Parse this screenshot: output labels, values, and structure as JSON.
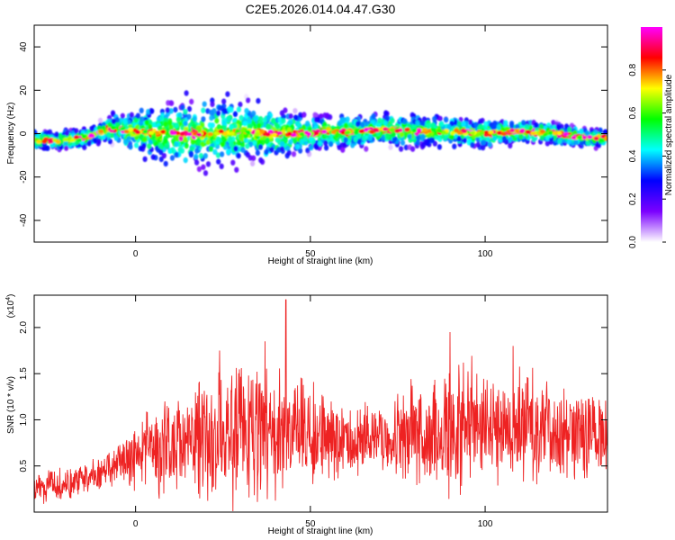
{
  "title": "C2E5.2026.014.04.47.G30",
  "chart_data": [
    {
      "type": "heatmap",
      "xlabel": "Height of straight line (km)",
      "ylabel": "Frequency (Hz)",
      "xlim": [
        -29,
        135
      ],
      "ylim": [
        -50,
        50
      ],
      "xticks": [
        0,
        50,
        100
      ],
      "yticks": [
        -40,
        -20,
        0,
        20,
        40
      ],
      "colorbar": {
        "label": "Normalized spectral amplitude",
        "range": [
          0,
          1
        ],
        "ticks": [
          "0.0",
          "0.2",
          "0.4",
          "0.6",
          "0.8"
        ],
        "colors": [
          "#ffffff",
          "#7b00ff",
          "#0000ff",
          "#00ffff",
          "#00ff00",
          "#ffff00",
          "#ff0000",
          "#ff00ff"
        ]
      },
      "ridge": {
        "x": [
          -29,
          -20,
          -15,
          -11,
          -8,
          -5,
          0,
          10,
          20,
          30,
          40,
          50,
          55,
          60,
          65,
          70,
          80,
          90,
          100,
          110,
          120,
          125,
          130,
          135
        ],
        "y": [
          -3,
          -3,
          -2,
          0,
          2,
          2,
          1,
          0,
          0,
          1,
          0,
          0,
          1,
          1,
          1,
          2,
          1,
          1,
          0,
          1,
          0,
          -1,
          -2,
          -2
        ]
      },
      "spread_hz": {
        "x": [
          -29,
          -10,
          0,
          10,
          20,
          30,
          40,
          50,
          60,
          80,
          100,
          120,
          135
        ],
        "y": [
          3,
          4,
          8,
          12,
          14,
          12,
          10,
          7,
          6,
          6,
          5,
          4,
          3
        ]
      },
      "grid": false
    },
    {
      "type": "line",
      "xlabel": "Height of straight line (km)",
      "ylabel": "SNR (10 * v/v)",
      "multiplier": "(x10",
      "multiplier_exp": "4",
      "xlim": [
        -29,
        135
      ],
      "ylim": [
        0,
        2.35
      ],
      "xticks": [
        0,
        50,
        100
      ],
      "yticks": [
        "0.5",
        "1.0",
        "1.5",
        "2.0"
      ],
      "color": "#ee2222",
      "envelope": {
        "x": [
          -29,
          -20,
          -10,
          -5,
          0,
          10,
          20,
          30,
          40,
          45,
          50,
          60,
          70,
          80,
          90,
          100,
          110,
          120,
          130,
          135
        ],
        "y": [
          0.25,
          0.3,
          0.4,
          0.5,
          0.6,
          0.75,
          0.8,
          0.85,
          0.85,
          0.85,
          0.8,
          0.8,
          0.8,
          0.85,
          0.9,
          0.95,
          0.95,
          0.9,
          0.85,
          0.85
        ]
      },
      "amplitude": {
        "x": [
          -29,
          -5,
          0,
          10,
          20,
          30,
          40,
          50,
          60,
          70,
          80,
          90,
          100,
          110,
          120,
          135
        ],
        "y": [
          0.15,
          0.2,
          0.35,
          0.55,
          0.65,
          0.75,
          0.7,
          0.55,
          0.4,
          0.35,
          0.55,
          0.7,
          0.65,
          0.6,
          0.55,
          0.4
        ]
      },
      "peaks": [
        {
          "x": 43,
          "y": 2.3
        },
        {
          "x": 37,
          "y": 1.85
        },
        {
          "x": 90,
          "y": 1.95
        },
        {
          "x": 24,
          "y": 1.75
        },
        {
          "x": 108,
          "y": 1.8
        }
      ],
      "grid": false
    }
  ]
}
